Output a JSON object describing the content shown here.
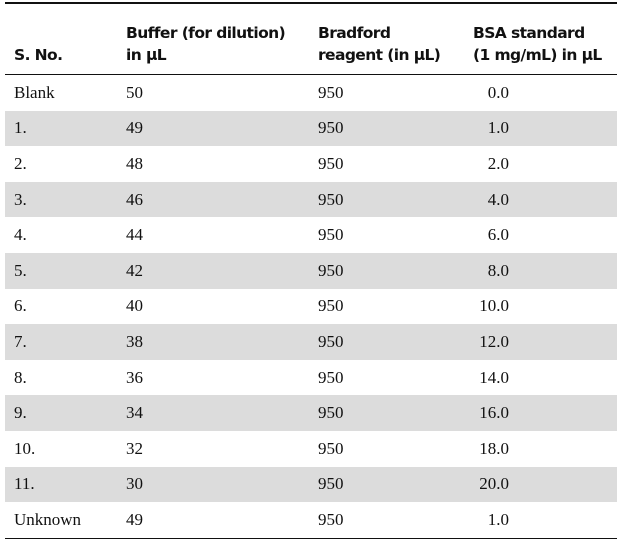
{
  "table": {
    "header": [
      [
        "S. No."
      ],
      [
        "Buffer (for dilution)",
        "in μL"
      ],
      [
        "Bradford",
        "reagent (in μL)"
      ],
      [
        "BSA standard",
        "(1 mg/mL) in μL"
      ]
    ],
    "rows": [
      [
        "Blank",
        "50",
        "950",
        "0.0"
      ],
      [
        "1.",
        "49",
        "950",
        "1.0"
      ],
      [
        "2.",
        "48",
        "950",
        "2.0"
      ],
      [
        "3.",
        "46",
        "950",
        "4.0"
      ],
      [
        "4.",
        "44",
        "950",
        "6.0"
      ],
      [
        "5.",
        "42",
        "950",
        "8.0"
      ],
      [
        "6.",
        "40",
        "950",
        "10.0"
      ],
      [
        "7.",
        "38",
        "950",
        "12.0"
      ],
      [
        "8.",
        "36",
        "950",
        "14.0"
      ],
      [
        "9.",
        "34",
        "950",
        "16.0"
      ],
      [
        "10.",
        "32",
        "950",
        "18.0"
      ],
      [
        "11.",
        "30",
        "950",
        "20.0"
      ],
      [
        "Unknown",
        "49",
        "950",
        "1.0"
      ]
    ]
  }
}
